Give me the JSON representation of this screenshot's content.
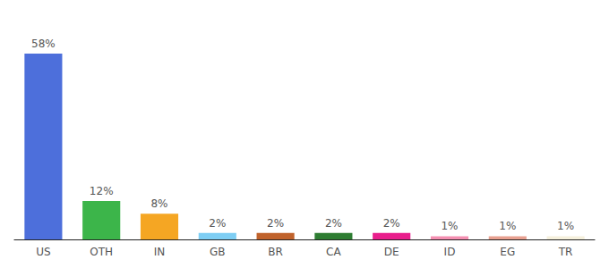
{
  "chart_data": {
    "type": "bar",
    "categories": [
      "US",
      "OTH",
      "IN",
      "GB",
      "BR",
      "CA",
      "DE",
      "ID",
      "EG",
      "TR"
    ],
    "values": [
      58,
      12,
      8,
      2,
      2,
      2,
      2,
      1,
      1,
      1
    ],
    "value_labels": [
      "58%",
      "12%",
      "8%",
      "2%",
      "2%",
      "2%",
      "2%",
      "1%",
      "1%",
      "1%"
    ],
    "colors": [
      "#4d6fdb",
      "#3cb54a",
      "#f5a623",
      "#7ecef4",
      "#c0622b",
      "#2e7d32",
      "#e91e8c",
      "#f48fb1",
      "#e8a090",
      "#f5f0dc"
    ],
    "ylim": [
      0,
      68
    ],
    "grid": false,
    "data_labels": true,
    "tick_labels": "x"
  }
}
